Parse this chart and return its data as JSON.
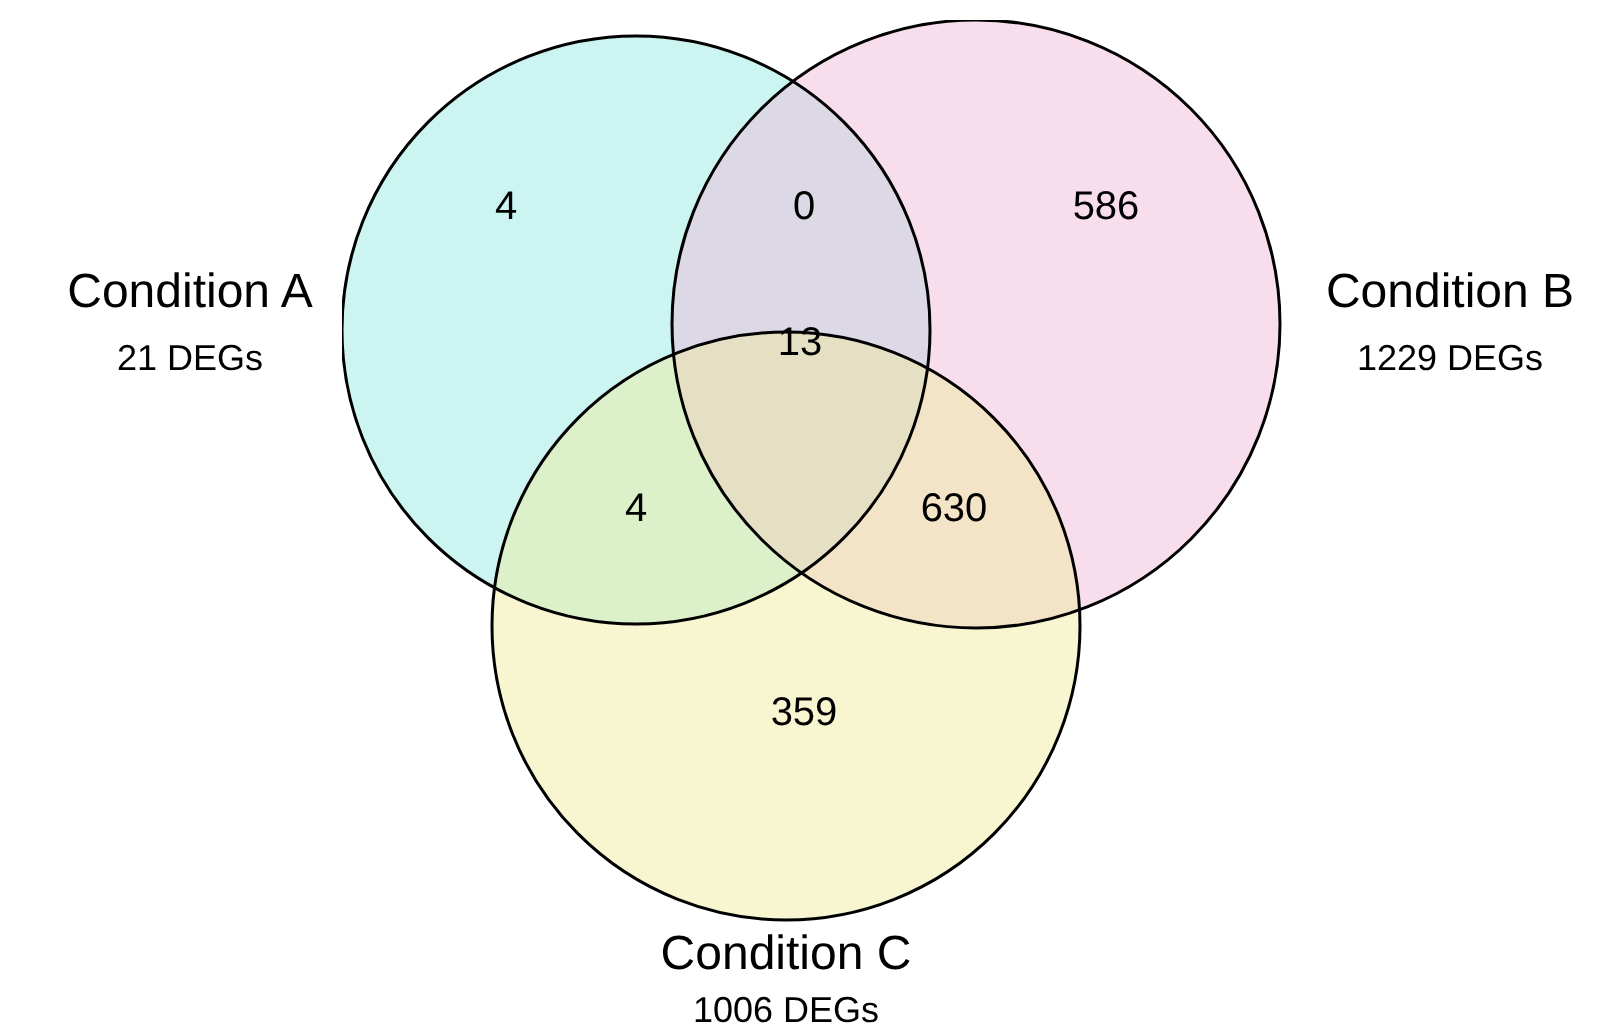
{
  "chart_data": {
    "type": "other",
    "categories": [
      null,
      null,
      null,
      null,
      null,
      null,
      null
    ],
    "values": [
      4,
      0,
      586,
      13,
      4,
      630,
      359
    ],
    "data_labels": true,
    "annotations": [
      "Condition A",
      "21 DEGs",
      "Condition B",
      "1229 DEGs",
      "Condition C",
      "1006 DEGs"
    ]
  }
}
